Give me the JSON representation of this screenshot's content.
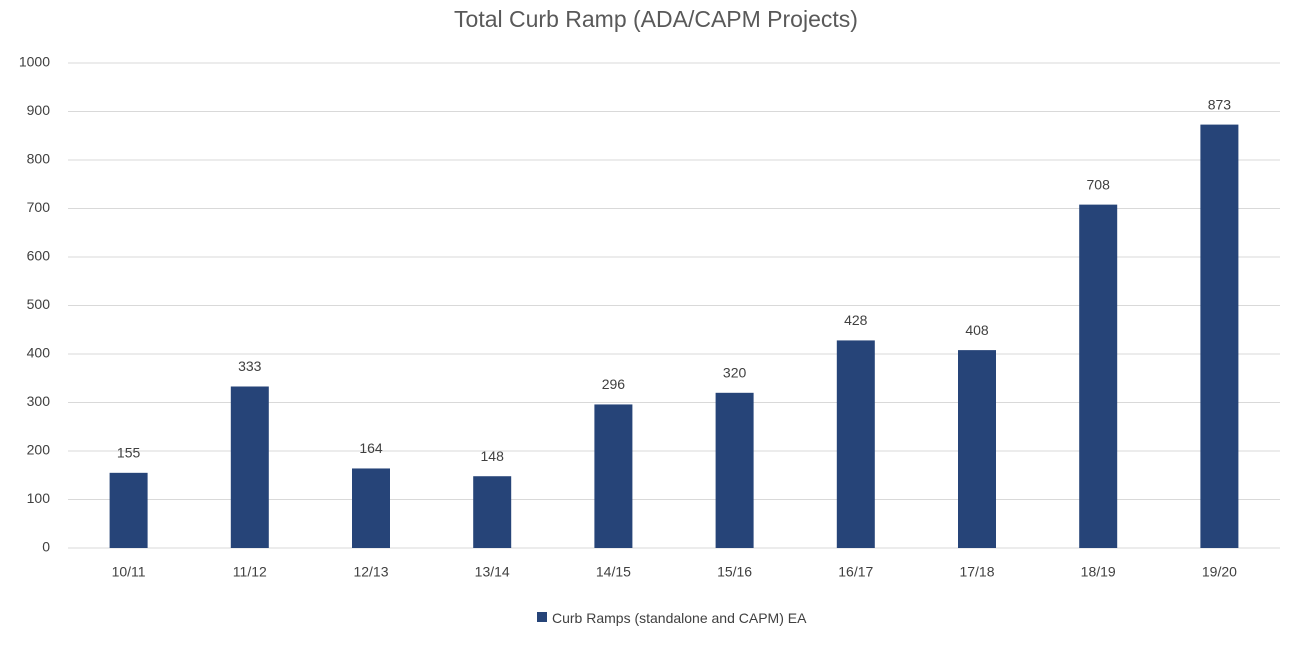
{
  "chart_data": {
    "type": "bar",
    "title": "Total Curb Ramp (ADA/CAPM Projects)",
    "categories": [
      "10/11",
      "11/12",
      "12/13",
      "13/14",
      "14/15",
      "15/16",
      "16/17",
      "17/18",
      "18/19",
      "19/20"
    ],
    "series": [
      {
        "name": "Curb Ramps (standalone and CAPM) EA",
        "color": "#264478",
        "values": [
          155,
          333,
          164,
          148,
          296,
          320,
          428,
          408,
          708,
          873
        ]
      }
    ],
    "ylim": [
      0,
      1000
    ],
    "yticks": [
      0,
      100,
      200,
      300,
      400,
      500,
      600,
      700,
      800,
      900,
      1000
    ],
    "grid": true,
    "legend": "bottom"
  }
}
